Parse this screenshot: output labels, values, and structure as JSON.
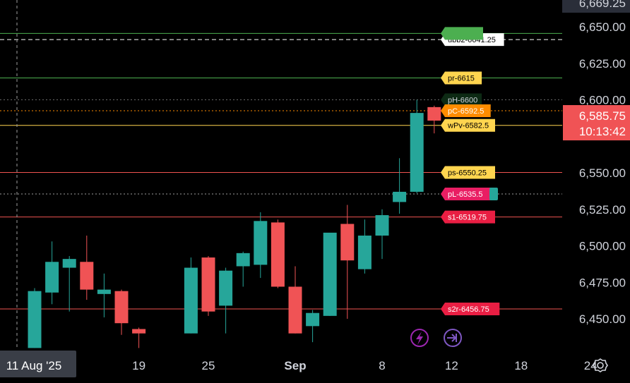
{
  "chart_data": {
    "type": "candlestick",
    "y_axis": {
      "ylim": [
        6430,
        6670
      ],
      "ticks": [
        6450,
        6475,
        6500,
        6525,
        6550,
        6575,
        6600,
        6625,
        6650
      ],
      "tick_labels": [
        "6,450.00",
        "6,475.00",
        "6,500.00",
        "6,525.00",
        "6,550.00",
        "",
        "6,600.00",
        "6,625.00",
        "6,650.00"
      ],
      "top_partial_label": "6,669.25"
    },
    "x_axis": {
      "labels": [
        {
          "text": "11 Aug '25",
          "index": 0,
          "highlighted": true
        },
        {
          "text": "19",
          "index": 6
        },
        {
          "text": "25",
          "index": 10
        },
        {
          "text": "Sep",
          "index": 15,
          "bold": true
        },
        {
          "text": "8",
          "index": 20
        },
        {
          "text": "12",
          "index": 24
        },
        {
          "text": "18",
          "index": 28
        },
        {
          "text": "24",
          "index": 32
        }
      ]
    },
    "candles": [
      {
        "o": 6430,
        "h": 6471,
        "l": 6430,
        "c": 6469
      },
      {
        "o": 6468,
        "h": 6503,
        "l": 6460,
        "c": 6489
      },
      {
        "o": 6485,
        "h": 6493,
        "l": 6455,
        "c": 6491
      },
      {
        "o": 6489,
        "h": 6507,
        "l": 6463,
        "c": 6470
      },
      {
        "o": 6467,
        "h": 6481,
        "l": 6451,
        "c": 6470
      },
      {
        "o": 6469,
        "h": 6470,
        "l": 6439,
        "c": 6447
      },
      {
        "o": 6443,
        "h": 6444,
        "l": 6430,
        "c": 6440
      },
      {
        "o": 6440,
        "h": 6440,
        "l": 6440,
        "c": 6440
      },
      {
        "o": 6440,
        "h": 6440,
        "l": 6440,
        "c": 6440
      },
      {
        "o": 6440,
        "h": 6492,
        "l": 6440,
        "c": 6485
      },
      {
        "o": 6492,
        "h": 6493,
        "l": 6452,
        "c": 6455
      },
      {
        "o": 6459,
        "h": 6485,
        "l": 6440,
        "c": 6483
      },
      {
        "o": 6486,
        "h": 6496,
        "l": 6472,
        "c": 6495
      },
      {
        "o": 6487,
        "h": 6523,
        "l": 6478,
        "c": 6517
      },
      {
        "o": 6516,
        "h": 6518,
        "l": 6471,
        "c": 6472
      },
      {
        "o": 6472,
        "h": 6486,
        "l": 6440,
        "c": 6440
      },
      {
        "o": 6445,
        "h": 6456,
        "l": 6434,
        "c": 6454
      },
      {
        "o": 6452,
        "h": 6508,
        "l": 6452,
        "c": 6509
      },
      {
        "o": 6515,
        "h": 6528,
        "l": 6450,
        "c": 6490
      },
      {
        "o": 6484,
        "h": 6518,
        "l": 6481,
        "c": 6507
      },
      {
        "o": 6507,
        "h": 6525,
        "l": 6491,
        "c": 6521
      },
      {
        "o": 6530,
        "h": 6560,
        "l": 6522,
        "c": 6537
      },
      {
        "o": 6537,
        "h": 6600,
        "l": 6536,
        "c": 6591
      },
      {
        "o": 6595,
        "h": 6596,
        "l": 6577,
        "c": 6585.75
      }
    ],
    "levels": [
      {
        "label": "ubb2-6641.25",
        "value": 6641.25,
        "line": "#ffffff",
        "dashed": true,
        "tag_bg": "#ffffff",
        "tag_fg": "#000000"
      },
      {
        "label": "",
        "value": 6645.5,
        "line": "#4caf50",
        "dashed": false,
        "tag_bg": "#4caf50",
        "tag_fg": "#ffffff"
      },
      {
        "label": "pr-6615",
        "value": 6615,
        "line": "#4caf50",
        "dashed": false,
        "tag_bg": "#ffd54f",
        "tag_fg": "#000000"
      },
      {
        "label": "pH-6600",
        "value": 6600,
        "line": "#6b6b6b",
        "dashed": true,
        "tag_bg": "#0d2a14",
        "tag_fg": "#d1d4dc"
      },
      {
        "label": "pC-6592.5",
        "value": 6592.5,
        "line": "#ff8c00",
        "dashed": true,
        "tag_bg": "#ff8c00",
        "tag_fg": "#ffffff"
      },
      {
        "label": "wPv-6582.5",
        "value": 6582.5,
        "line": "#ffd54f",
        "dashed": false,
        "tag_bg": "#ffd54f",
        "tag_fg": "#000000"
      },
      {
        "label": "ps-6550.25",
        "value": 6550.25,
        "line": "#ef5350",
        "dashed": false,
        "tag_bg": "#ffd54f",
        "tag_fg": "#000000"
      },
      {
        "label": "pL-6535.5",
        "value": 6535.5,
        "line": "#9e9e9e",
        "dashed": true,
        "tag_bg": "#e91e63",
        "tag_fg": "#ffffff"
      },
      {
        "label": "s1-6519.75",
        "value": 6519.75,
        "line": "#ef5350",
        "dashed": false,
        "tag_bg": "#e91e43",
        "tag_fg": "#ffffff"
      },
      {
        "label": "s2r-6456.75",
        "value": 6456.75,
        "line": "#ef5350",
        "dashed": false,
        "tag_bg": "#e91e43",
        "tag_fg": "#ffffff"
      }
    ],
    "last_price": {
      "price": "6,585.75",
      "countdown": "10:13:42",
      "value": 6585.75,
      "bg": "#f05355"
    },
    "colors": {
      "up": "#26a69a",
      "down": "#f05355",
      "background": "#000000",
      "axis_text": "#d1d4dc"
    },
    "crosshair": {
      "index": 0
    }
  },
  "icons": {
    "lightning": "lightning-icon",
    "forward": "forward-icon",
    "settings": "settings-icon"
  }
}
